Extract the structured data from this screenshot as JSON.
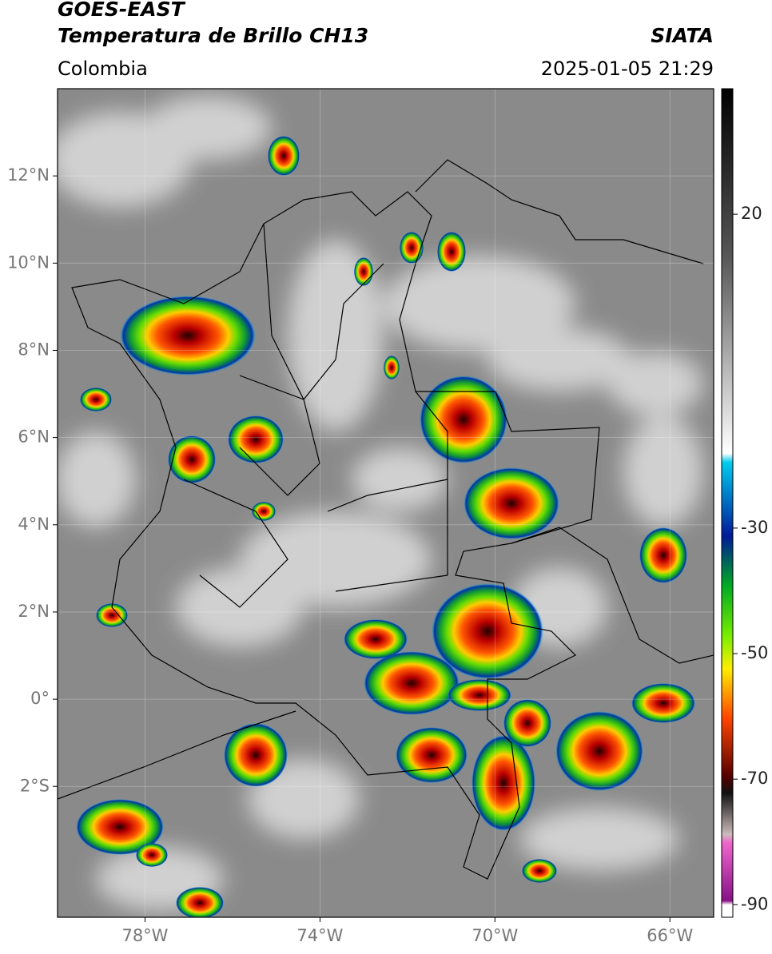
{
  "header": {
    "title": "GOES-EAST",
    "subtitle": "Temperatura de Brillo CH13",
    "region": "Colombia",
    "source": "SIATA",
    "datetime": "2025-01-05 21:29"
  },
  "map": {
    "lon_range": [
      -80,
      -65
    ],
    "lat_range": [
      -5,
      14
    ],
    "lon_ticks": [
      {
        "value": -78,
        "label": "78°W"
      },
      {
        "value": -74,
        "label": "74°W"
      },
      {
        "value": -70,
        "label": "70°W"
      },
      {
        "value": -66,
        "label": "66°W"
      }
    ],
    "lat_ticks": [
      {
        "value": 12,
        "label": "12°N"
      },
      {
        "value": 10,
        "label": "10°N"
      },
      {
        "value": 8,
        "label": "8°N"
      },
      {
        "value": 6,
        "label": "6°N"
      },
      {
        "value": 4,
        "label": "4°N"
      },
      {
        "value": 2,
        "label": "2°N"
      },
      {
        "value": 0,
        "label": "0°"
      },
      {
        "value": -2,
        "label": "2°S"
      }
    ]
  },
  "colorbar": {
    "range": [
      -92,
      40
    ],
    "ticks": [
      20,
      -30,
      -50,
      -70,
      -90
    ]
  }
}
